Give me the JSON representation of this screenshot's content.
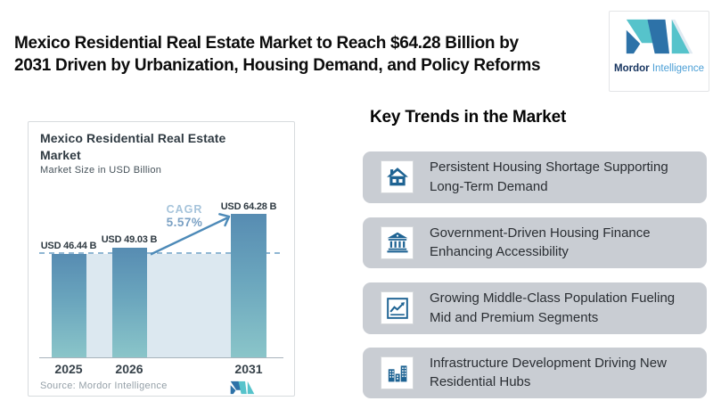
{
  "header": {
    "title_lines": [
      "Mexico Residential Real Estate Market to Reach $64.28 Billion by",
      "2031 Driven by Urbanization, Housing Demand, and Policy Reforms"
    ],
    "logo": {
      "brand_bold": "Mordor",
      "brand_light": "Intelligence"
    }
  },
  "chart": {
    "title_lines": [
      "Mexico Residential Real Estate",
      "Market"
    ],
    "subtitle": "Market Size in USD Billion",
    "value_labels": [
      "USD 46.44 B",
      "USD 49.03 B",
      "USD 64.28 B"
    ],
    "x_labels": [
      "2025",
      "2026",
      "2031"
    ],
    "cagr_label": "CAGR",
    "cagr_value": "5.57%",
    "source": "Source: Mordor Intelligence"
  },
  "chart_data": {
    "type": "bar",
    "title": "Mexico Residential Real Estate Market",
    "subtitle": "Market Size in USD Billion",
    "unit": "USD Billion",
    "categories": [
      "2025",
      "2026",
      "2031"
    ],
    "values": [
      46.44,
      49.03,
      64.28
    ],
    "data_labels": [
      "USD 46.44 B",
      "USD 49.03 B",
      "USD 64.28 B"
    ],
    "cagr_pct": 5.57,
    "baseline_value": 46.44,
    "ylim": [
      0,
      70
    ],
    "grid": false,
    "annotations": [
      "CAGR 5.57%",
      "dashed reference line at 2025 value"
    ],
    "source": "Source: Mordor Intelligence",
    "bar_gradient": [
      "#578cb2",
      "#8ac5c9"
    ],
    "plot_fill_color": "#dce8f0"
  },
  "trends": {
    "heading": "Key Trends in the Market",
    "items": [
      {
        "icon": "house",
        "line1": "Persistent Housing Shortage Supporting",
        "line2": "Long-Term Demand"
      },
      {
        "icon": "bank",
        "line1": "Government-Driven Housing Finance",
        "line2": "Enhancing Accessibility"
      },
      {
        "icon": "line-chart",
        "line1": "Growing Middle-Class Population Fueling",
        "line2": "Mid and Premium Segments"
      },
      {
        "icon": "buildings",
        "line1": "Infrastructure Development Driving New",
        "line2": "Residential Hubs"
      }
    ]
  },
  "colors": {
    "accent_blue": "#2d72a8",
    "accent_teal": "#56c3cb",
    "icon_blue": "#1e6393",
    "card_gray": "#c9cdd3",
    "bar_top": "#578cb2",
    "bar_bottom": "#8ac5c9",
    "dashed_line": "#8fb6d3",
    "plot_fill": "#dce8f0"
  }
}
